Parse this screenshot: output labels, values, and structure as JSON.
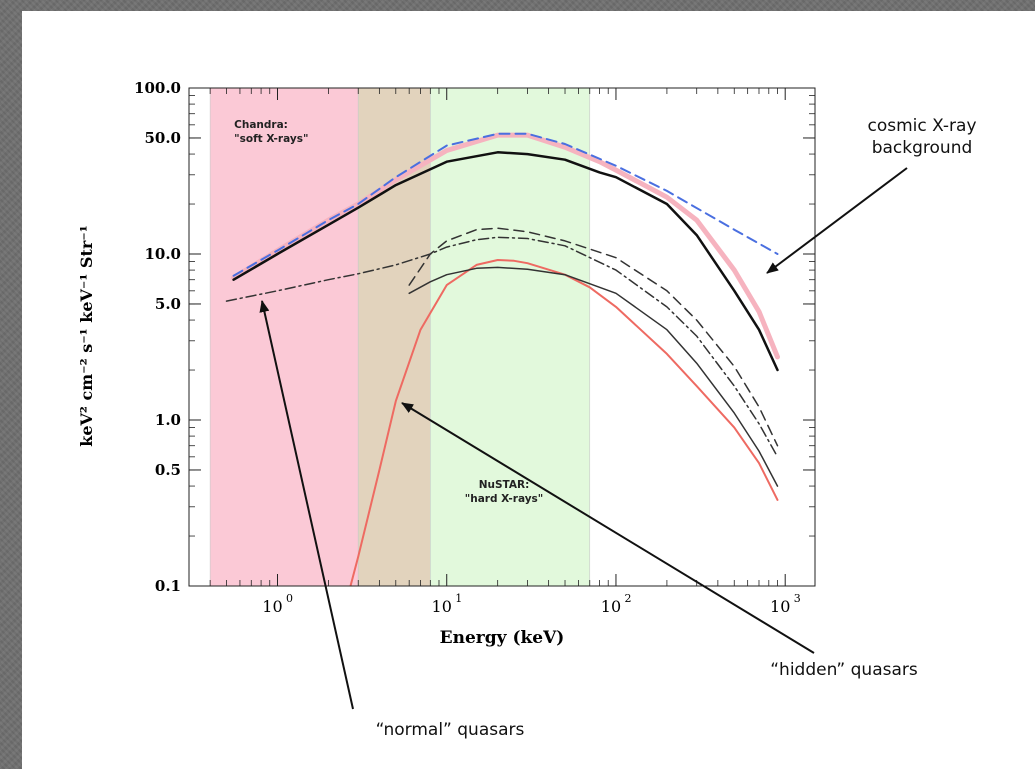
{
  "chart_data": {
    "type": "line",
    "xlabel": "Energy (keV)",
    "ylabel": "keV² cm⁻² s⁻¹ keV⁻¹ Str⁻¹",
    "xscale": "log",
    "yscale": "log",
    "xlim": [
      0.3,
      1500
    ],
    "ylim": [
      0.1,
      100
    ],
    "xticks": [
      {
        "value": 1,
        "label": "10"
      },
      {
        "value": 10,
        "label": "10"
      },
      {
        "value": 100,
        "label": "10"
      },
      {
        "value": 1000,
        "label": "10"
      }
    ],
    "xtick_exponents": [
      "0",
      "1",
      "2",
      "3"
    ],
    "yticks": [
      {
        "value": 0.1,
        "label": "0.1"
      },
      {
        "value": 0.5,
        "label": "0.5"
      },
      {
        "value": 1,
        "label": "1.0"
      },
      {
        "value": 5,
        "label": "5.0"
      },
      {
        "value": 10,
        "label": "10.0"
      },
      {
        "value": 50,
        "label": "50.0"
      },
      {
        "value": 100,
        "label": "100.0"
      }
    ],
    "bands": [
      {
        "name": "chandra",
        "from": 0.4,
        "to": 3,
        "color": "#fbc9d6",
        "label_lines": [
          "Chandra:",
          "\"soft X-rays\""
        ]
      },
      {
        "name": "overlap",
        "from": 3,
        "to": 8,
        "color": "#e2d3bd",
        "label_lines": []
      },
      {
        "name": "nustar",
        "from": 8,
        "to": 70,
        "color": "#e2f9dc",
        "label_lines": [
          "NuSTAR:",
          "\"hard X-rays\""
        ]
      }
    ],
    "series": [
      {
        "id": "data-band",
        "color": "#f6b3bf",
        "dash": "",
        "width": 5,
        "x": [
          0.55,
          1,
          2,
          3,
          5,
          10,
          20,
          30,
          50,
          80,
          100,
          200,
          300,
          500,
          700,
          900
        ],
        "y": [
          7.2,
          10.5,
          16,
          20,
          28,
          42,
          52,
          52,
          44,
          36,
          32,
          22,
          16,
          8,
          4.5,
          2.4
        ]
      },
      {
        "id": "cxb-model-total",
        "color": "#111111",
        "dash": "",
        "width": 2.5,
        "x": [
          0.55,
          1,
          2,
          3,
          5,
          10,
          20,
          30,
          50,
          80,
          100,
          200,
          300,
          500,
          700,
          900
        ],
        "y": [
          7,
          10,
          15,
          19,
          26,
          36,
          41,
          40,
          37,
          31,
          29,
          20,
          13,
          6,
          3.5,
          2
        ]
      },
      {
        "id": "power-law-fit",
        "color": "#4a6fe0",
        "dash": "10,6",
        "width": 2,
        "x": [
          0.55,
          1,
          2,
          3,
          5,
          10,
          20,
          30,
          50,
          100,
          200,
          500,
          900
        ],
        "y": [
          7.4,
          10.5,
          16,
          20,
          29,
          45,
          53,
          53,
          46,
          34,
          24,
          14,
          10
        ]
      },
      {
        "id": "hidden-quasars",
        "color": "#ee6a62",
        "dash": "",
        "width": 2,
        "x": [
          2.7,
          3,
          4,
          5,
          7,
          10,
          15,
          20,
          25,
          30,
          50,
          70,
          100,
          200,
          300,
          500,
          700,
          900
        ],
        "y": [
          0.1,
          0.15,
          0.5,
          1.3,
          3.5,
          6.5,
          8.6,
          9.2,
          9.1,
          8.8,
          7.5,
          6.3,
          4.8,
          2.5,
          1.6,
          0.9,
          0.55,
          0.33
        ]
      },
      {
        "id": "normal-quasars",
        "color": "#333333",
        "dash": "10,4,2,4",
        "width": 1.5,
        "x": [
          0.5,
          1,
          2,
          3,
          5,
          8,
          10,
          15,
          20,
          30,
          50,
          100,
          200,
          300,
          500,
          700,
          900
        ],
        "y": [
          5.2,
          6,
          7,
          7.6,
          8.6,
          10,
          11,
          12.2,
          12.6,
          12.4,
          11.2,
          8,
          4.8,
          3.2,
          1.6,
          0.95,
          0.6
        ]
      },
      {
        "id": "obscured-total",
        "color": "#333333",
        "dash": "10,6",
        "width": 1.5,
        "x": [
          6,
          8,
          10,
          15,
          20,
          30,
          50,
          100,
          200,
          300,
          500,
          700,
          900
        ],
        "y": [
          6.5,
          10,
          12,
          14,
          14.3,
          13.6,
          12,
          9.5,
          6,
          4,
          2.1,
          1.2,
          0.7
        ]
      },
      {
        "id": "compton-thin",
        "color": "#333333",
        "dash": "",
        "width": 1.5,
        "x": [
          6,
          8,
          10,
          15,
          20,
          30,
          50,
          100,
          200,
          300,
          500,
          700,
          900
        ],
        "y": [
          5.8,
          6.8,
          7.5,
          8.2,
          8.3,
          8.1,
          7.5,
          5.8,
          3.5,
          2.2,
          1.1,
          0.65,
          0.4
        ]
      }
    ],
    "annotations": [
      {
        "id": "cosmic",
        "lines": [
          "cosmic X-ray",
          "background"
        ]
      },
      {
        "id": "hidden",
        "lines": [
          "“hidden” quasars"
        ]
      },
      {
        "id": "normal",
        "lines": [
          "“normal” quasars"
        ]
      }
    ]
  }
}
